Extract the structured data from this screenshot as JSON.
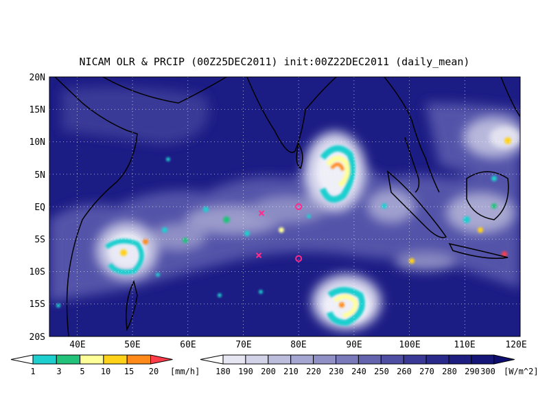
{
  "title": "NICAM OLR & PRCIP (00Z25DEC2011) init:00Z22DEC2011 (daily_mean)",
  "map": {
    "lon_range": [
      35,
      120
    ],
    "lat_range": [
      -20,
      20
    ],
    "lon_ticks": [
      "40E",
      "50E",
      "60E",
      "70E",
      "80E",
      "90E",
      "100E",
      "110E",
      "120E"
    ],
    "lat_ticks": [
      "20N",
      "15N",
      "10N",
      "5N",
      "EQ",
      "5S",
      "10S",
      "15S",
      "20S"
    ],
    "gridlines": "dotted",
    "background_color": "#1c1c85"
  },
  "precip_legend": {
    "labels": [
      "1",
      "3",
      "5",
      "10",
      "15",
      "20"
    ],
    "unit": "[mm/h]",
    "colors": [
      "#ffffff",
      "#1ecfcf",
      "#22c27a",
      "#ffff99",
      "#ffd21a",
      "#ff8a1a",
      "#ff3d4a"
    ]
  },
  "olr_legend": {
    "labels": [
      "180",
      "190",
      "200",
      "210",
      "220",
      "230",
      "240",
      "250",
      "260",
      "270",
      "280",
      "290",
      "300"
    ],
    "unit": "[W/m^2]",
    "colors": [
      "#ffffff",
      "#e6e6f2",
      "#d2d2e8",
      "#bcbcdd",
      "#a6a6d2",
      "#9090c6",
      "#7a7aba",
      "#6464ae",
      "#4e4ea2",
      "#3a3a96",
      "#2a2a8a",
      "#1e1e80",
      "#161678",
      "#0e0e6e"
    ]
  },
  "markers": [
    {
      "type": "cross",
      "lon": 73.3,
      "lat": -1.0
    },
    {
      "type": "cross",
      "lon": 72.8,
      "lat": -7.5
    },
    {
      "type": "circle",
      "lon": 80.0,
      "lat": 0.0
    },
    {
      "type": "circle",
      "lon": 80.0,
      "lat": -8.0
    }
  ]
}
